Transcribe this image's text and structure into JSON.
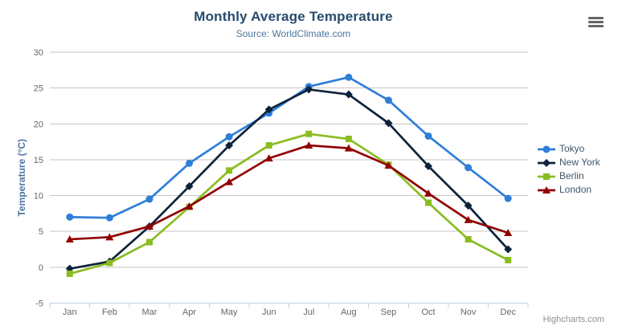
{
  "credits": {
    "label": "Highcharts.com"
  },
  "toolbar": {
    "export_menu_icon": "hamburger-icon"
  },
  "axis": {
    "y_title": "Temperature (°C)",
    "yticks": [
      -5,
      0,
      5,
      10,
      15,
      20,
      25,
      30
    ]
  },
  "chart_data": {
    "type": "line",
    "title": "Monthly Average Temperature",
    "subtitle": "Source: WorldClimate.com",
    "categories": [
      "Jan",
      "Feb",
      "Mar",
      "Apr",
      "May",
      "Jun",
      "Jul",
      "Aug",
      "Sep",
      "Oct",
      "Nov",
      "Dec"
    ],
    "xlabel": "",
    "ylabel": "Temperature (°C)",
    "ylim": [
      -5,
      30
    ],
    "ytick_step": 5,
    "grid": true,
    "legend_position": "right",
    "series": [
      {
        "name": "Tokyo",
        "color": "#2f7ed8",
        "marker": "circle",
        "values": [
          7.0,
          6.9,
          9.5,
          14.5,
          18.2,
          21.5,
          25.2,
          26.5,
          23.3,
          18.3,
          13.9,
          9.6
        ]
      },
      {
        "name": "New York",
        "color": "#0d233a",
        "marker": "diamond",
        "values": [
          -0.2,
          0.8,
          5.7,
          11.3,
          17.0,
          22.0,
          24.8,
          24.1,
          20.1,
          14.1,
          8.6,
          2.5
        ]
      },
      {
        "name": "Berlin",
        "color": "#8bbc21",
        "marker": "square",
        "values": [
          -0.9,
          0.6,
          3.5,
          8.4,
          13.5,
          17.0,
          18.6,
          17.9,
          14.3,
          9.0,
          3.9,
          1.0
        ]
      },
      {
        "name": "London",
        "color": "#910000",
        "marker": "triangle",
        "values": [
          3.9,
          4.2,
          5.7,
          8.5,
          11.9,
          15.2,
          17.0,
          16.6,
          14.2,
          10.3,
          6.6,
          4.8
        ]
      }
    ],
    "style": {
      "title_color": "#274b6d",
      "subtitle_color": "#4d759e",
      "axis_label_color": "#666666",
      "axis_title_color": "#4d759e",
      "legend_text_color": "#3e576f",
      "gridline_color": "#c6c6c6",
      "axis_line_color": "#c0d0e0",
      "credits_color": "#909090"
    }
  }
}
